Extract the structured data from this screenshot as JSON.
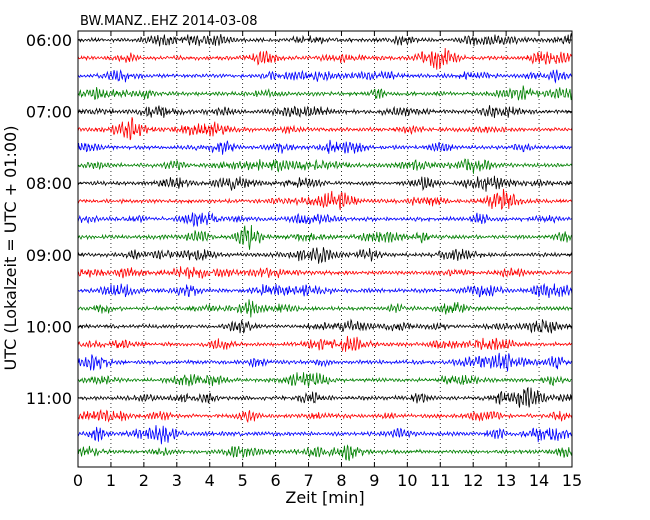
{
  "chart_data": {
    "type": "line",
    "title": "BW.MANZ..EHZ 2014-03-08",
    "xlabel": "Zeit  [min]",
    "ylabel": "UTC (Lokalzeit = UTC + 01:00)",
    "xlim": [
      0,
      15
    ],
    "xticks": [
      "0",
      "1",
      "2",
      "3",
      "4",
      "5",
      "6",
      "7",
      "8",
      "9",
      "10",
      "11",
      "12",
      "13",
      "14",
      "15"
    ],
    "ytick_labels": [
      "06:00",
      "07:00",
      "08:00",
      "09:00",
      "10:00",
      "11:00"
    ],
    "traces_per_hour": 4,
    "trace_count": 24,
    "trace_colors": [
      "#000000",
      "#ff0000",
      "#0000ff",
      "#008000"
    ],
    "grid": "vertical dotted",
    "legend": "none"
  }
}
